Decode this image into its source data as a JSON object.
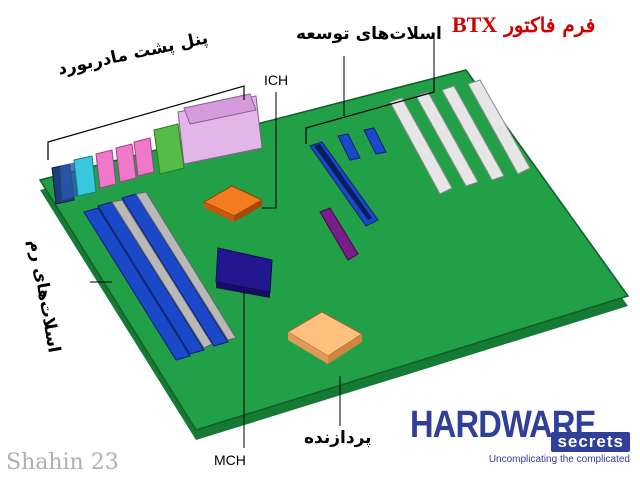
{
  "title": {
    "prefix": "فرم فاکتور",
    "brand": "BTX"
  },
  "labels": {
    "expansion_slots": "اسلات‌های توسعه",
    "back_panel": "پنل پشت مادربورد",
    "ich": "ICH",
    "ram_slots": "اسلات‌های رم",
    "processor": "پردازنده",
    "mch": "MCH"
  },
  "watermark": "Shahin 23",
  "logo": {
    "main": "HARDWARE",
    "secondary": "secrets",
    "tagline": "Uncomplicating the complicated"
  },
  "colors": {
    "board": "#21a047",
    "board_edge": "#157a33",
    "title_red": "#d00000",
    "ram_slot": "#1b47c9",
    "pci_slot": "#e6e6e6",
    "pcie_slot": "#1b47c9",
    "chip_ich": "#f47b20",
    "chip_mch": "#23178f",
    "cpu": "#ffc080",
    "port_pink": "#ef78c8",
    "port_cyan": "#37c8e0",
    "port_green": "#55bd47",
    "port_lavender": "#e2b7e8",
    "port_navy": "#1c3f80"
  }
}
